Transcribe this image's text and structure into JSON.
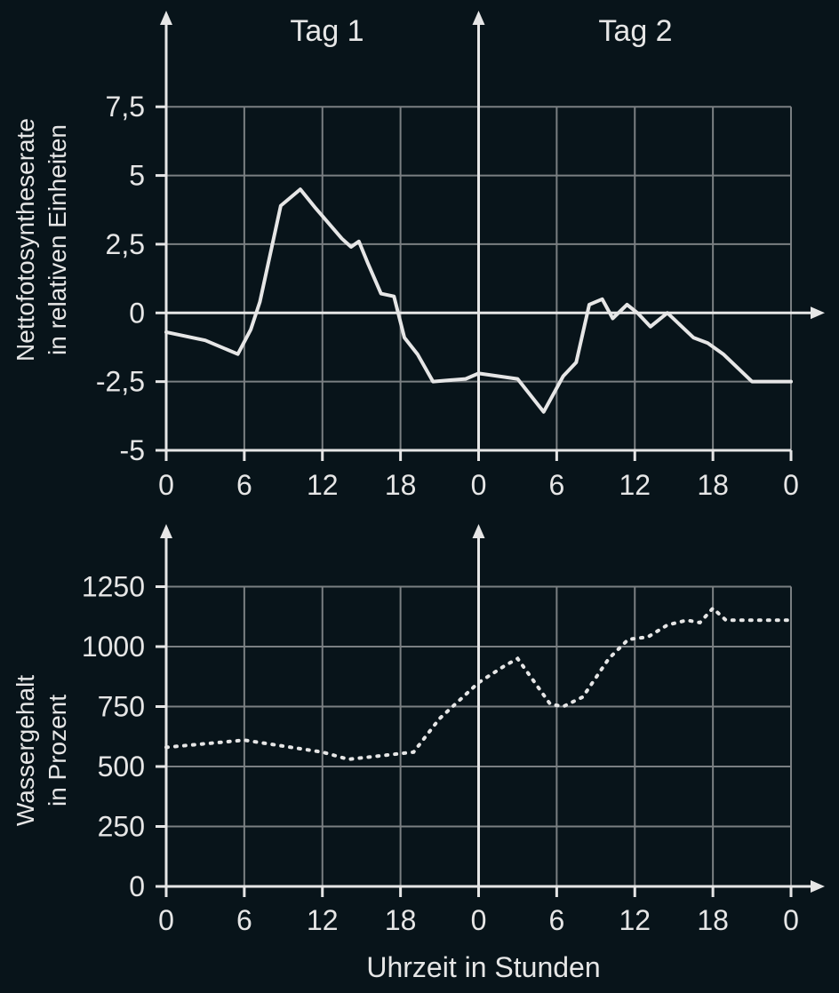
{
  "colors": {
    "background": "#08141a",
    "foreground": "#e6e6e6",
    "grid": "#7a7f82"
  },
  "x_axis_label": "Uhrzeit in Stunden",
  "chart_data": [
    {
      "type": "line",
      "ylabel": [
        "Nettofotosyntheserate",
        "in relativen Einheiten"
      ],
      "day_labels": [
        "Tag 1",
        "Tag 2"
      ],
      "x_unit": "hour (0–48, two days)",
      "xlim": [
        0,
        48
      ],
      "x_ticks": [
        0,
        6,
        12,
        18,
        24,
        30,
        36,
        42,
        48
      ],
      "x_tick_labels": [
        "0",
        "6",
        "12",
        "18",
        "0",
        "6",
        "12",
        "18",
        "0"
      ],
      "ylim": [
        -5,
        8.8
      ],
      "y_ticks": [
        -5,
        -2.5,
        0,
        2.5,
        5,
        7.5
      ],
      "y_tick_labels": [
        "-5",
        "-2,5",
        "0",
        "2,5",
        "5",
        "7,5"
      ],
      "grid": true,
      "line_style": "solid",
      "x": [
        0,
        3,
        5.5,
        6.5,
        7.2,
        8.8,
        10.3,
        11.5,
        13.5,
        14.2,
        14.8,
        15.5,
        16.5,
        17.5,
        18.3,
        19.3,
        20.5,
        23,
        24,
        27,
        29,
        30.5,
        31.5,
        32.5,
        33.5,
        34.3,
        35.4,
        36.2,
        37.2,
        38.5,
        40.5,
        41.6,
        42.8,
        45,
        48
      ],
      "y": [
        -0.7,
        -1,
        -1.5,
        -0.6,
        0.4,
        3.9,
        4.5,
        3.8,
        2.7,
        2.4,
        2.6,
        1.8,
        0.7,
        0.6,
        -0.9,
        -1.5,
        -2.5,
        -2.4,
        -2.2,
        -2.4,
        -3.6,
        -2.3,
        -1.8,
        0.3,
        0.5,
        -0.2,
        0.3,
        0,
        -0.5,
        0,
        -0.9,
        -1.1,
        -1.5,
        -2.5,
        -2.5
      ]
    },
    {
      "type": "line",
      "ylabel": [
        "Wassergehalt",
        "in Prozent"
      ],
      "xlabel": "Uhrzeit in Stunden",
      "x_unit": "hour (0–48, two days)",
      "xlim": [
        0,
        48
      ],
      "x_ticks": [
        0,
        6,
        12,
        18,
        24,
        30,
        36,
        42,
        48
      ],
      "x_tick_labels": [
        "0",
        "6",
        "12",
        "18",
        "0",
        "6",
        "12",
        "18",
        "0"
      ],
      "ylim": [
        0,
        1400
      ],
      "y_ticks": [
        0,
        250,
        500,
        750,
        1000,
        1250
      ],
      "y_tick_labels": [
        "0",
        "250",
        "500",
        "750",
        "1000",
        "1250"
      ],
      "grid": true,
      "line_style": "dotted",
      "x": [
        0,
        6,
        12,
        14,
        19,
        21,
        23,
        24,
        26,
        27,
        29.5,
        30.5,
        32,
        34,
        35.5,
        37,
        38.5,
        40,
        41,
        42,
        43,
        45,
        48
      ],
      "y": [
        580,
        610,
        560,
        530,
        560,
        700,
        800,
        850,
        920,
        950,
        760,
        750,
        790,
        950,
        1030,
        1040,
        1090,
        1110,
        1100,
        1160,
        1110,
        1110,
        1110
      ]
    }
  ]
}
